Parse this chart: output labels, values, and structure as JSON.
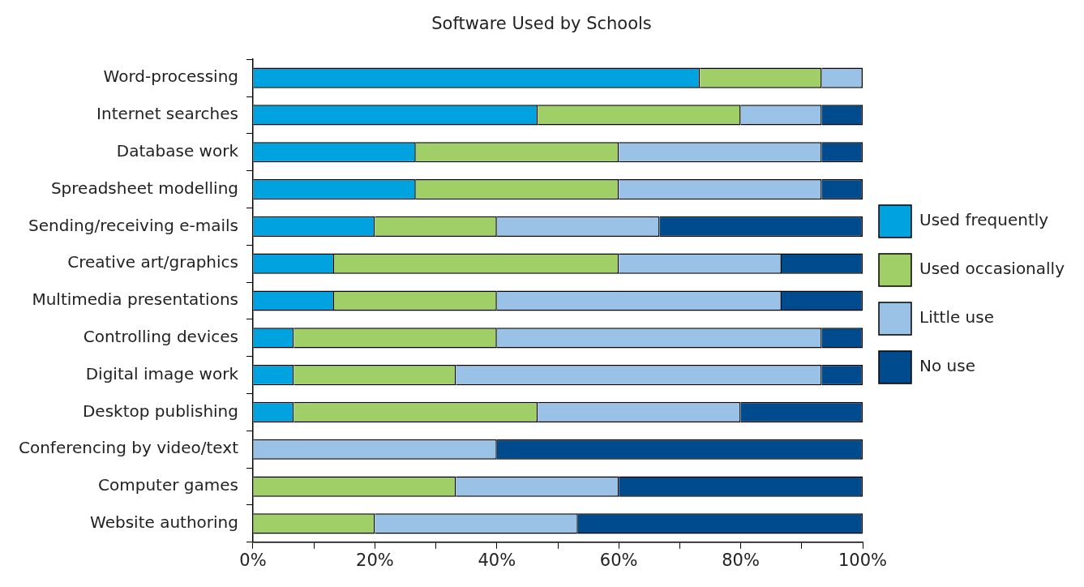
{
  "chart_data": {
    "type": "bar",
    "title": "Software Used by Schools",
    "orientation": "horizontal",
    "stacked": true,
    "categories": [
      "Word-processing",
      "Internet searches",
      "Database work",
      "Spreadsheet modelling",
      "Sending/receiving e-mails",
      "Creative art/graphics",
      "Multimedia presentations",
      "Controlling devices",
      "Digital image work",
      "Desktop publishing",
      "Conferencing by video/text",
      "Computer games",
      "Website authoring"
    ],
    "series": [
      {
        "name": "Used frequently",
        "color": "#00a3e0",
        "values": [
          73.3,
          46.7,
          26.7,
          26.7,
          20,
          13.3,
          13.3,
          6.7,
          6.7,
          6.7,
          0,
          0,
          0
        ]
      },
      {
        "name": "Used occasionally",
        "color": "#a0cf67",
        "values": [
          20,
          33.3,
          33.3,
          33.3,
          20,
          46.7,
          26.7,
          33.3,
          26.6,
          40,
          0,
          33.3,
          20
        ]
      },
      {
        "name": "Little use",
        "color": "#99c2e6",
        "values": [
          6.7,
          13.3,
          33.3,
          33.3,
          26.7,
          26.7,
          46.7,
          53.3,
          60,
          33.3,
          40,
          26.7,
          33.3
        ]
      },
      {
        "name": "No use",
        "color": "#004b8d",
        "values": [
          0,
          6.7,
          6.7,
          6.7,
          33.3,
          13.3,
          13.3,
          6.7,
          6.7,
          20,
          60,
          40,
          46.7
        ]
      }
    ],
    "xlim": [
      0,
      100
    ],
    "xticks": [
      {
        "value": 0,
        "label": "0%"
      },
      {
        "value": 10,
        "label": null
      },
      {
        "value": 20,
        "label": "20%"
      },
      {
        "value": 30,
        "label": null
      },
      {
        "value": 40,
        "label": "40%"
      },
      {
        "value": 50,
        "label": null
      },
      {
        "value": 60,
        "label": "60%"
      },
      {
        "value": 70,
        "label": null
      },
      {
        "value": 80,
        "label": "80%"
      },
      {
        "value": 90,
        "label": null
      },
      {
        "value": 100,
        "label": "100%"
      }
    ],
    "grid": false,
    "legend": "right"
  }
}
